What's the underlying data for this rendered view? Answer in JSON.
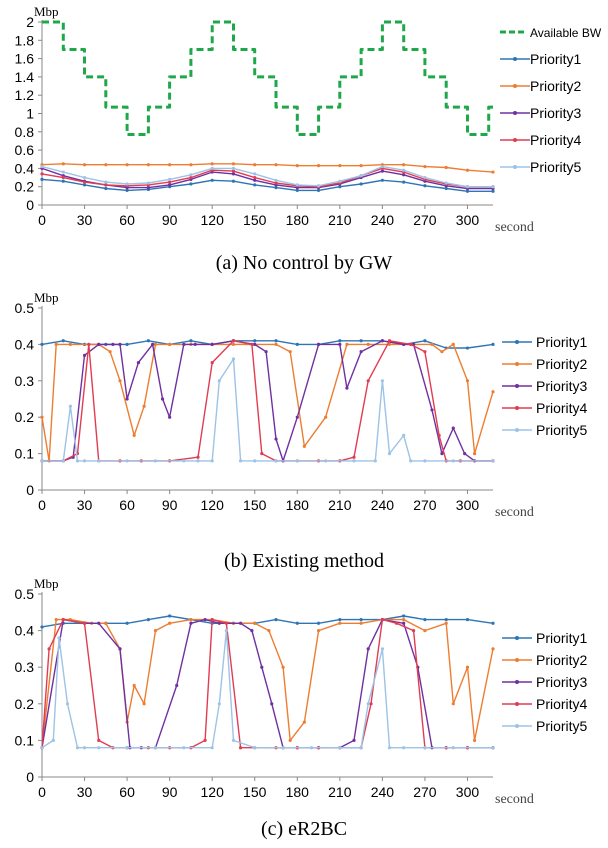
{
  "chart_data": [
    {
      "type": "line",
      "caption": "(a) No control by GW",
      "ylabel": "Mbp",
      "xlabel": "second",
      "ylim": [
        0,
        2
      ],
      "yticks": [
        "0",
        "0.2",
        "0.4",
        "0.6",
        "0.8",
        "1",
        "1.2",
        "1.4",
        "1.6",
        "1.8",
        "2"
      ],
      "xlim": [
        0,
        318
      ],
      "xticks": [
        "0",
        "30",
        "60",
        "90",
        "120",
        "150",
        "180",
        "210",
        "240",
        "270",
        "300"
      ],
      "legend_position": "right",
      "grid": false,
      "series": [
        {
          "name": "Available BW",
          "color": "#1fa84a",
          "dashed": true,
          "x": [
            0,
            15,
            15,
            30,
            30,
            45,
            45,
            60,
            60,
            75,
            75,
            90,
            90,
            105,
            105,
            120,
            120,
            135,
            135,
            150,
            150,
            165,
            165,
            180,
            180,
            195,
            195,
            210,
            210,
            225,
            225,
            240,
            240,
            255,
            255,
            270,
            270,
            285,
            285,
            300,
            300,
            315,
            315,
            318
          ],
          "values": [
            2,
            2,
            1.7,
            1.7,
            1.4,
            1.4,
            1.07,
            1.07,
            0.77,
            0.77,
            1.07,
            1.07,
            1.4,
            1.4,
            1.7,
            1.7,
            2,
            2,
            1.7,
            1.7,
            1.4,
            1.4,
            1.07,
            1.07,
            0.77,
            0.77,
            1.07,
            1.07,
            1.4,
            1.4,
            1.7,
            1.7,
            2,
            2,
            1.7,
            1.7,
            1.4,
            1.4,
            1.07,
            1.07,
            0.77,
            0.77,
            1.07,
            1.07
          ]
        },
        {
          "name": "Priority1",
          "color": "#2e75b6",
          "x": [
            0,
            15,
            30,
            45,
            60,
            75,
            90,
            105,
            120,
            135,
            150,
            165,
            180,
            195,
            210,
            225,
            240,
            255,
            270,
            285,
            300,
            318
          ],
          "values": [
            0.28,
            0.26,
            0.22,
            0.18,
            0.16,
            0.17,
            0.2,
            0.23,
            0.27,
            0.26,
            0.22,
            0.19,
            0.16,
            0.16,
            0.2,
            0.23,
            0.27,
            0.25,
            0.21,
            0.18,
            0.15,
            0.15
          ]
        },
        {
          "name": "Priority2",
          "color": "#ed7d31",
          "x": [
            0,
            15,
            30,
            45,
            60,
            75,
            90,
            105,
            120,
            135,
            150,
            165,
            180,
            195,
            210,
            225,
            240,
            255,
            270,
            285,
            300,
            318
          ],
          "values": [
            0.44,
            0.45,
            0.44,
            0.44,
            0.44,
            0.44,
            0.44,
            0.44,
            0.45,
            0.45,
            0.44,
            0.44,
            0.43,
            0.43,
            0.43,
            0.43,
            0.44,
            0.44,
            0.42,
            0.41,
            0.38,
            0.36
          ]
        },
        {
          "name": "Priority3",
          "color": "#7030a0",
          "x": [
            0,
            15,
            30,
            45,
            60,
            75,
            90,
            105,
            120,
            135,
            150,
            165,
            180,
            195,
            210,
            225,
            240,
            255,
            270,
            285,
            300,
            318
          ],
          "values": [
            0.4,
            0.32,
            0.26,
            0.22,
            0.19,
            0.19,
            0.22,
            0.28,
            0.36,
            0.34,
            0.27,
            0.22,
            0.19,
            0.19,
            0.23,
            0.3,
            0.37,
            0.33,
            0.26,
            0.21,
            0.18,
            0.18
          ]
        },
        {
          "name": "Priority4",
          "color": "#e03c52",
          "x": [
            0,
            15,
            30,
            45,
            60,
            75,
            90,
            105,
            120,
            135,
            150,
            165,
            180,
            195,
            210,
            225,
            240,
            255,
            270,
            285,
            300,
            318
          ],
          "values": [
            0.34,
            0.3,
            0.25,
            0.22,
            0.21,
            0.22,
            0.25,
            0.3,
            0.38,
            0.37,
            0.3,
            0.24,
            0.21,
            0.2,
            0.24,
            0.32,
            0.4,
            0.36,
            0.28,
            0.23,
            0.2,
            0.2
          ]
        },
        {
          "name": "Priority5",
          "color": "#9dc3e6",
          "x": [
            0,
            15,
            30,
            45,
            60,
            75,
            90,
            105,
            120,
            135,
            150,
            165,
            180,
            195,
            210,
            225,
            240,
            255,
            270,
            285,
            300,
            318
          ],
          "values": [
            0.42,
            0.36,
            0.3,
            0.25,
            0.23,
            0.24,
            0.28,
            0.33,
            0.4,
            0.4,
            0.34,
            0.27,
            0.22,
            0.21,
            0.26,
            0.32,
            0.42,
            0.38,
            0.3,
            0.24,
            0.2,
            0.2
          ]
        }
      ]
    },
    {
      "type": "line",
      "caption": "(b) Existing method",
      "ylabel": "Mbp",
      "xlabel": "second",
      "ylim": [
        0,
        0.5
      ],
      "yticks": [
        "0",
        "0.1",
        "0.2",
        "0.3",
        "0.4",
        "0.5"
      ],
      "xlim": [
        0,
        318
      ],
      "xticks": [
        "0",
        "30",
        "60",
        "90",
        "120",
        "150",
        "180",
        "210",
        "240",
        "270",
        "300"
      ],
      "legend_position": "right",
      "grid": false,
      "series": [
        {
          "name": "Priority1",
          "color": "#2e75b6",
          "x": [
            0,
            15,
            30,
            45,
            60,
            75,
            90,
            105,
            120,
            135,
            150,
            165,
            180,
            195,
            210,
            225,
            240,
            255,
            270,
            285,
            300,
            318
          ],
          "values": [
            0.4,
            0.41,
            0.4,
            0.4,
            0.4,
            0.41,
            0.4,
            0.41,
            0.4,
            0.41,
            0.41,
            0.41,
            0.4,
            0.4,
            0.41,
            0.41,
            0.41,
            0.4,
            0.41,
            0.39,
            0.39,
            0.4
          ]
        },
        {
          "name": "Priority2",
          "color": "#ed7d31",
          "x": [
            0,
            5,
            10,
            20,
            40,
            48,
            55,
            65,
            72,
            80,
            90,
            105,
            120,
            135,
            150,
            165,
            175,
            185,
            200,
            215,
            230,
            245,
            260,
            275,
            282,
            290,
            300,
            305,
            318
          ],
          "values": [
            0.2,
            0.08,
            0.4,
            0.4,
            0.4,
            0.38,
            0.3,
            0.15,
            0.23,
            0.4,
            0.4,
            0.4,
            0.4,
            0.4,
            0.4,
            0.4,
            0.38,
            0.12,
            0.2,
            0.4,
            0.4,
            0.4,
            0.4,
            0.4,
            0.38,
            0.4,
            0.3,
            0.1,
            0.27
          ]
        },
        {
          "name": "Priority3",
          "color": "#7030a0",
          "x": [
            0,
            15,
            22,
            30,
            40,
            50,
            55,
            60,
            68,
            78,
            85,
            90,
            100,
            108,
            120,
            135,
            150,
            158,
            165,
            170,
            180,
            195,
            210,
            215,
            225,
            240,
            255,
            262,
            275,
            282,
            290,
            298,
            305,
            318
          ],
          "values": [
            0.08,
            0.08,
            0.09,
            0.37,
            0.4,
            0.4,
            0.4,
            0.25,
            0.35,
            0.4,
            0.25,
            0.2,
            0.4,
            0.4,
            0.4,
            0.41,
            0.4,
            0.38,
            0.14,
            0.08,
            0.2,
            0.4,
            0.4,
            0.28,
            0.38,
            0.41,
            0.4,
            0.4,
            0.22,
            0.1,
            0.17,
            0.1,
            0.08,
            0.08
          ]
        },
        {
          "name": "Priority4",
          "color": "#e03c52",
          "x": [
            0,
            15,
            25,
            33,
            40,
            55,
            70,
            90,
            110,
            120,
            135,
            148,
            155,
            165,
            180,
            195,
            210,
            220,
            230,
            245,
            260,
            270,
            280,
            285,
            295,
            318
          ],
          "values": [
            0.08,
            0.08,
            0.1,
            0.4,
            0.08,
            0.08,
            0.08,
            0.08,
            0.09,
            0.35,
            0.41,
            0.4,
            0.1,
            0.08,
            0.08,
            0.08,
            0.08,
            0.09,
            0.3,
            0.41,
            0.4,
            0.38,
            0.15,
            0.08,
            0.08,
            0.08
          ]
        },
        {
          "name": "Priority5",
          "color": "#9dc3e6",
          "x": [
            0,
            15,
            20,
            25,
            30,
            40,
            60,
            80,
            100,
            110,
            120,
            125,
            135,
            140,
            150,
            165,
            180,
            200,
            220,
            235,
            240,
            245,
            255,
            260,
            270,
            290,
            318
          ],
          "values": [
            0.08,
            0.08,
            0.23,
            0.08,
            0.08,
            0.08,
            0.08,
            0.08,
            0.08,
            0.08,
            0.08,
            0.3,
            0.36,
            0.08,
            0.08,
            0.08,
            0.08,
            0.08,
            0.08,
            0.08,
            0.3,
            0.1,
            0.15,
            0.08,
            0.08,
            0.08,
            0.08
          ]
        }
      ]
    },
    {
      "type": "line",
      "caption": "(c) eR2BC",
      "ylabel": "Mbp",
      "xlabel": "second",
      "ylim": [
        0,
        0.5
      ],
      "yticks": [
        "0",
        "0.1",
        "0.2",
        "0.3",
        "0.4",
        "0.5"
      ],
      "xlim": [
        0,
        318
      ],
      "xticks": [
        "0",
        "30",
        "60",
        "90",
        "120",
        "150",
        "180",
        "210",
        "240",
        "270",
        "300"
      ],
      "legend_position": "right",
      "grid": false,
      "series": [
        {
          "name": "Priority1",
          "color": "#2e75b6",
          "x": [
            0,
            15,
            30,
            45,
            60,
            75,
            90,
            105,
            120,
            135,
            150,
            165,
            180,
            195,
            210,
            225,
            240,
            255,
            270,
            285,
            300,
            318
          ],
          "values": [
            0.41,
            0.42,
            0.42,
            0.42,
            0.42,
            0.43,
            0.44,
            0.43,
            0.42,
            0.42,
            0.42,
            0.43,
            0.42,
            0.42,
            0.43,
            0.43,
            0.43,
            0.44,
            0.43,
            0.43,
            0.43,
            0.42
          ]
        },
        {
          "name": "Priority2",
          "color": "#ed7d31",
          "x": [
            0,
            10,
            20,
            35,
            45,
            55,
            60,
            65,
            72,
            80,
            90,
            105,
            120,
            135,
            150,
            160,
            170,
            175,
            185,
            195,
            210,
            225,
            240,
            255,
            270,
            285,
            290,
            300,
            305,
            318
          ],
          "values": [
            0.08,
            0.43,
            0.43,
            0.42,
            0.42,
            0.35,
            0.15,
            0.25,
            0.2,
            0.4,
            0.42,
            0.43,
            0.43,
            0.42,
            0.42,
            0.4,
            0.3,
            0.1,
            0.15,
            0.4,
            0.42,
            0.42,
            0.43,
            0.43,
            0.4,
            0.42,
            0.2,
            0.3,
            0.1,
            0.35
          ]
        },
        {
          "name": "Priority3",
          "color": "#7030a0",
          "x": [
            0,
            15,
            30,
            40,
            55,
            62,
            70,
            80,
            95,
            105,
            115,
            125,
            140,
            148,
            155,
            162,
            170,
            180,
            195,
            210,
            220,
            230,
            240,
            255,
            265,
            275,
            285,
            300,
            318
          ],
          "values": [
            0.08,
            0.43,
            0.42,
            0.42,
            0.35,
            0.08,
            0.08,
            0.08,
            0.25,
            0.42,
            0.43,
            0.42,
            0.42,
            0.4,
            0.3,
            0.2,
            0.08,
            0.08,
            0.08,
            0.08,
            0.1,
            0.35,
            0.43,
            0.42,
            0.3,
            0.08,
            0.08,
            0.08,
            0.08
          ]
        },
        {
          "name": "Priority4",
          "color": "#e03c52",
          "x": [
            0,
            5,
            15,
            30,
            40,
            50,
            60,
            75,
            90,
            105,
            115,
            120,
            130,
            140,
            150,
            165,
            180,
            195,
            210,
            225,
            232,
            240,
            250,
            262,
            270,
            285,
            300,
            318
          ],
          "values": [
            0.08,
            0.35,
            0.43,
            0.42,
            0.1,
            0.08,
            0.08,
            0.08,
            0.08,
            0.08,
            0.1,
            0.43,
            0.42,
            0.08,
            0.08,
            0.08,
            0.08,
            0.08,
            0.08,
            0.08,
            0.2,
            0.43,
            0.42,
            0.4,
            0.08,
            0.08,
            0.08,
            0.08
          ]
        },
        {
          "name": "Priority5",
          "color": "#9dc3e6",
          "x": [
            0,
            8,
            12,
            18,
            25,
            30,
            40,
            60,
            80,
            100,
            120,
            125,
            130,
            135,
            150,
            170,
            190,
            210,
            225,
            230,
            240,
            245,
            255,
            270,
            290,
            318
          ],
          "values": [
            0.08,
            0.1,
            0.38,
            0.2,
            0.08,
            0.08,
            0.08,
            0.08,
            0.08,
            0.08,
            0.08,
            0.2,
            0.4,
            0.1,
            0.08,
            0.08,
            0.08,
            0.08,
            0.08,
            0.2,
            0.35,
            0.08,
            0.08,
            0.08,
            0.08,
            0.08
          ]
        }
      ]
    }
  ]
}
